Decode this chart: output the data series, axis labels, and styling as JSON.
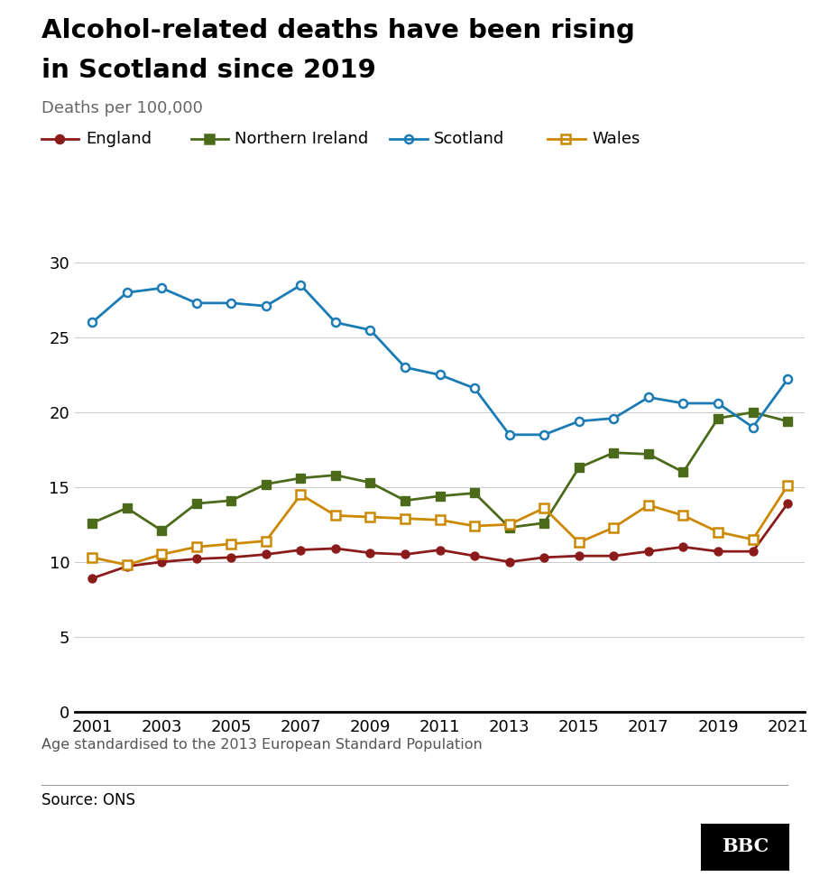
{
  "title_line1": "Alcohol-related deaths have been rising",
  "title_line2": "in Scotland since 2019",
  "subtitle": "Deaths per 100,000",
  "footnote": "Age standardised to the 2013 European Standard Population",
  "source": "Source: ONS",
  "years": [
    2001,
    2002,
    2003,
    2004,
    2005,
    2006,
    2007,
    2008,
    2009,
    2010,
    2011,
    2012,
    2013,
    2014,
    2015,
    2016,
    2017,
    2018,
    2019,
    2020,
    2021
  ],
  "england": [
    8.9,
    9.7,
    10.0,
    10.2,
    10.3,
    10.5,
    10.8,
    10.9,
    10.6,
    10.5,
    10.8,
    10.4,
    10.0,
    10.3,
    10.4,
    10.4,
    10.7,
    11.0,
    10.7,
    10.7,
    13.9
  ],
  "northern_ireland": [
    12.6,
    13.6,
    12.1,
    13.9,
    14.1,
    15.2,
    15.6,
    15.8,
    15.3,
    14.1,
    14.4,
    14.6,
    12.3,
    12.6,
    16.3,
    17.3,
    17.2,
    16.0,
    19.6,
    20.0,
    19.4
  ],
  "scotland": [
    26.0,
    28.0,
    28.3,
    27.3,
    27.3,
    27.1,
    28.5,
    26.0,
    25.5,
    23.0,
    22.5,
    21.6,
    18.5,
    18.5,
    19.4,
    19.6,
    21.0,
    20.6,
    20.6,
    19.0,
    22.2
  ],
  "wales": [
    10.3,
    9.8,
    10.5,
    11.0,
    11.2,
    11.4,
    14.5,
    13.1,
    13.0,
    12.9,
    12.8,
    12.4,
    12.5,
    13.6,
    11.3,
    12.3,
    13.8,
    13.1,
    12.0,
    11.5,
    15.1
  ],
  "england_color": "#8B1A1A",
  "northern_ireland_color": "#4B6B1A",
  "scotland_color": "#1A7BB5",
  "wales_color": "#CC8800",
  "ylim": [
    0,
    32
  ],
  "yticks": [
    0,
    5,
    10,
    15,
    20,
    25,
    30
  ],
  "xticks": [
    2001,
    2003,
    2005,
    2007,
    2009,
    2011,
    2013,
    2015,
    2017,
    2019,
    2021
  ],
  "background_color": "#ffffff",
  "grid_color": "#cccccc"
}
